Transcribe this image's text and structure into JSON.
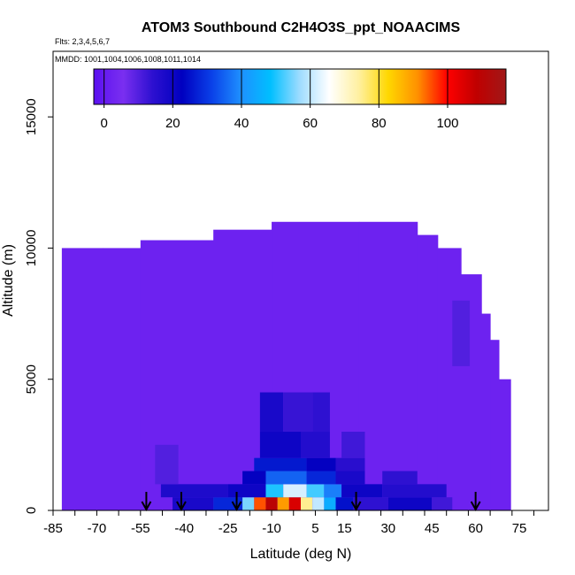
{
  "chart_data": {
    "type": "heatmap",
    "title": "ATOM3 Southbound C2H4O3S_ppt_NOAACIMS",
    "subtitle_flights": "Flts: 2,3,4,5,6,7",
    "subtitle_dates": "MMDD: 1001,1004,1006,1008,1011,1014",
    "xlabel": "Latitude (deg N)",
    "ylabel": "Altitude (m)",
    "xlim": [
      -85,
      85
    ],
    "ylim": [
      0,
      17500
    ],
    "x_ticks": [
      -85,
      -70,
      -55,
      -40,
      -25,
      -10,
      5,
      15,
      30,
      45,
      60,
      75
    ],
    "x_tick_labels": [
      "-85",
      "-70",
      "-55",
      "-40",
      "-25",
      "-10",
      "5",
      "15",
      "30",
      "45",
      "60",
      "75"
    ],
    "y_ticks": [
      0,
      5000,
      10000,
      15000
    ],
    "y_tick_labels": [
      "0",
      "5000",
      "10000",
      "15000"
    ],
    "colorbar": {
      "range": [
        -3,
        117
      ],
      "ticks": [
        0,
        20,
        40,
        60,
        80,
        100
      ],
      "tick_labels": [
        "0",
        "20",
        "40",
        "60",
        "80",
        "100"
      ],
      "stops": [
        "#5a10f0",
        "#7a2ff0",
        "#2d10d0",
        "#0000c0",
        "#0a40e8",
        "#1e90ff",
        "#00bfff",
        "#9fdcff",
        "#ffffff",
        "#fff0a0",
        "#ffd700",
        "#ff9000",
        "#ff0000",
        "#c00000",
        "#a01818"
      ]
    },
    "background_value": 2,
    "arrow_latitudes": [
      -53,
      -41,
      -22,
      19,
      60
    ],
    "enhanced_cells": [
      {
        "lat0": -44,
        "lat1": -30,
        "alt0": 0,
        "alt1": 500,
        "value": 18
      },
      {
        "lat0": -30,
        "lat1": -20,
        "alt0": 0,
        "alt1": 500,
        "value": 28
      },
      {
        "lat0": -20,
        "lat1": -16,
        "alt0": 0,
        "alt1": 500,
        "value": 55
      },
      {
        "lat0": -16,
        "lat1": -12,
        "alt0": 0,
        "alt1": 500,
        "value": 95
      },
      {
        "lat0": -12,
        "lat1": -8,
        "alt0": 0,
        "alt1": 500,
        "value": 110
      },
      {
        "lat0": -8,
        "lat1": -4,
        "alt0": 0,
        "alt1": 500,
        "value": 90
      },
      {
        "lat0": -4,
        "lat1": 0,
        "alt0": 0,
        "alt1": 500,
        "value": 105
      },
      {
        "lat0": 0,
        "lat1": 4,
        "alt0": 0,
        "alt1": 500,
        "value": 75
      },
      {
        "lat0": 4,
        "lat1": 8,
        "alt0": 0,
        "alt1": 500,
        "value": 60
      },
      {
        "lat0": 8,
        "lat1": 12,
        "alt0": 0,
        "alt1": 500,
        "value": 45
      },
      {
        "lat0": 12,
        "lat1": 18,
        "alt0": 0,
        "alt1": 500,
        "value": 25
      },
      {
        "lat0": 18,
        "lat1": 30,
        "alt0": 0,
        "alt1": 500,
        "value": 14
      },
      {
        "lat0": 30,
        "lat1": 45,
        "alt0": 0,
        "alt1": 500,
        "value": 20
      },
      {
        "lat0": 45,
        "lat1": 52,
        "alt0": 0,
        "alt1": 500,
        "value": 12
      },
      {
        "lat0": -48,
        "lat1": -25,
        "alt0": 500,
        "alt1": 1000,
        "value": 17
      },
      {
        "lat0": -25,
        "lat1": -12,
        "alt0": 500,
        "alt1": 1000,
        "value": 20
      },
      {
        "lat0": -12,
        "lat1": -6,
        "alt0": 500,
        "alt1": 1000,
        "value": 50
      },
      {
        "lat0": -6,
        "lat1": 2,
        "alt0": 500,
        "alt1": 1000,
        "value": 62
      },
      {
        "lat0": 2,
        "lat1": 8,
        "alt0": 500,
        "alt1": 1000,
        "value": 52
      },
      {
        "lat0": 8,
        "lat1": 14,
        "alt0": 500,
        "alt1": 1000,
        "value": 38
      },
      {
        "lat0": 14,
        "lat1": 28,
        "alt0": 500,
        "alt1": 1000,
        "value": 20
      },
      {
        "lat0": 28,
        "lat1": 50,
        "alt0": 500,
        "alt1": 1000,
        "value": 16
      },
      {
        "lat0": -20,
        "lat1": -12,
        "alt0": 1000,
        "alt1": 1500,
        "value": 22
      },
      {
        "lat0": -12,
        "lat1": 2,
        "alt0": 1000,
        "alt1": 1500,
        "value": 35
      },
      {
        "lat0": 2,
        "lat1": 12,
        "alt0": 1000,
        "alt1": 1500,
        "value": 28
      },
      {
        "lat0": 12,
        "lat1": 22,
        "alt0": 1000,
        "alt1": 1500,
        "value": 18
      },
      {
        "lat0": 28,
        "lat1": 40,
        "alt0": 1000,
        "alt1": 1500,
        "value": 14
      },
      {
        "lat0": -16,
        "lat1": 2,
        "alt0": 1500,
        "alt1": 2000,
        "value": 26
      },
      {
        "lat0": 2,
        "lat1": 12,
        "alt0": 1500,
        "alt1": 2000,
        "value": 22
      },
      {
        "lat0": 12,
        "lat1": 22,
        "alt0": 1500,
        "alt1": 2000,
        "value": 15
      },
      {
        "lat0": -14,
        "lat1": 0,
        "alt0": 2000,
        "alt1": 3000,
        "value": 20
      },
      {
        "lat0": 0,
        "lat1": 10,
        "alt0": 2000,
        "alt1": 3000,
        "value": 16
      },
      {
        "lat0": 14,
        "lat1": 22,
        "alt0": 2000,
        "alt1": 3000,
        "value": 12
      },
      {
        "lat0": -14,
        "lat1": -6,
        "alt0": 3000,
        "alt1": 4500,
        "value": 18
      },
      {
        "lat0": -6,
        "lat1": 4,
        "alt0": 3000,
        "alt1": 4500,
        "value": 13
      },
      {
        "lat0": 4,
        "lat1": 10,
        "alt0": 3000,
        "alt1": 4500,
        "value": 14
      },
      {
        "lat0": -50,
        "lat1": -42,
        "alt0": 1000,
        "alt1": 2500,
        "value": 10
      },
      {
        "lat0": 52,
        "lat1": 58,
        "alt0": 5500,
        "alt1": 8000,
        "value": 10
      }
    ],
    "grid": false
  }
}
